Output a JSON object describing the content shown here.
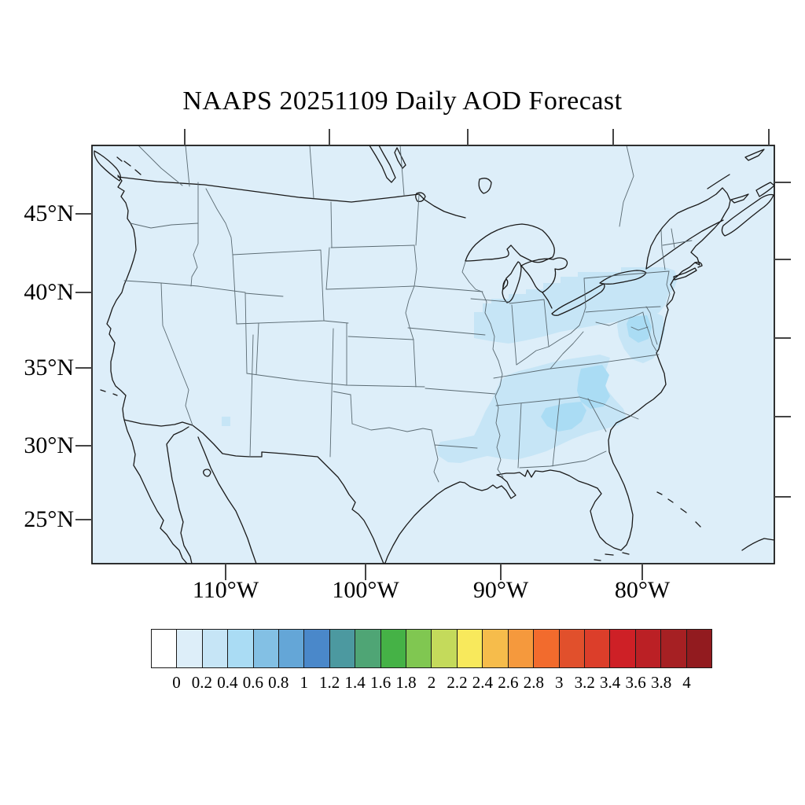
{
  "title": "NAAPS 20251109 Daily AOD Forecast",
  "map": {
    "lat_tick_labels": [
      "45°N",
      "40°N",
      "35°N",
      "30°N",
      "25°N"
    ],
    "lon_tick_labels": [
      "110°W",
      "100°W",
      "90°W",
      "80°W"
    ],
    "background_color": "#ddeef9",
    "aod_level1_color": "#c6e5f6",
    "aod_level2_color": "#aadcf4",
    "coastline_color": "#1a1a1a",
    "state_border_color": "#5a6a72"
  },
  "colorbar": {
    "tick_labels": [
      "0",
      "0.2",
      "0.4",
      "0.6",
      "0.8",
      "1",
      "1.2",
      "1.4",
      "1.6",
      "1.8",
      "2",
      "2.2",
      "2.4",
      "2.6",
      "2.8",
      "3",
      "3.2",
      "3.4",
      "3.6",
      "3.8",
      "4"
    ],
    "segment_colors": [
      "#ffffff",
      "#ddeef9",
      "#c6e5f6",
      "#aadcf4",
      "#83c0e4",
      "#64a6d7",
      "#4a88ca",
      "#4c99a0",
      "#4fa575",
      "#45b246",
      "#80c751",
      "#c4da5b",
      "#f8e95c",
      "#f6bc4b",
      "#f5993d",
      "#f26b2d",
      "#e1502c",
      "#dc3e2a",
      "#ce2026",
      "#bb2025",
      "#a62023",
      "#921b1f"
    ]
  },
  "chart_data": {
    "type": "heatmap",
    "title": "NAAPS 20251109 Daily AOD Forecast",
    "variable": "Aerosol Optical Depth (AOD), daily forecast",
    "region_shown": "Continental United States (~25°N-49°N, ~110°W-80°W labeled)",
    "scale_min": 0,
    "scale_max": 4,
    "scale_step": 0.2,
    "legend_position": "bottom",
    "regions": [
      {
        "area": "Most of CONUS and surrounding ocean",
        "aod": "0-0.2"
      },
      {
        "area": "Illinois-Indiana-Ohio-Pennsylvania-New York corridor",
        "aod": "0.2-0.4"
      },
      {
        "area": "Chesapeake Bay / Virginia",
        "aod": "0.2-0.6"
      },
      {
        "area": "Tennessee / Carolinas / Georgia / Alabama / Mississippi / Louisiana",
        "aod": "0.2-0.4"
      },
      {
        "area": "Western North Carolina and northern Georgia cores",
        "aod": "0.4-0.6"
      },
      {
        "area": "Small spot in central Arizona",
        "aod": "0.2-0.4"
      }
    ]
  }
}
